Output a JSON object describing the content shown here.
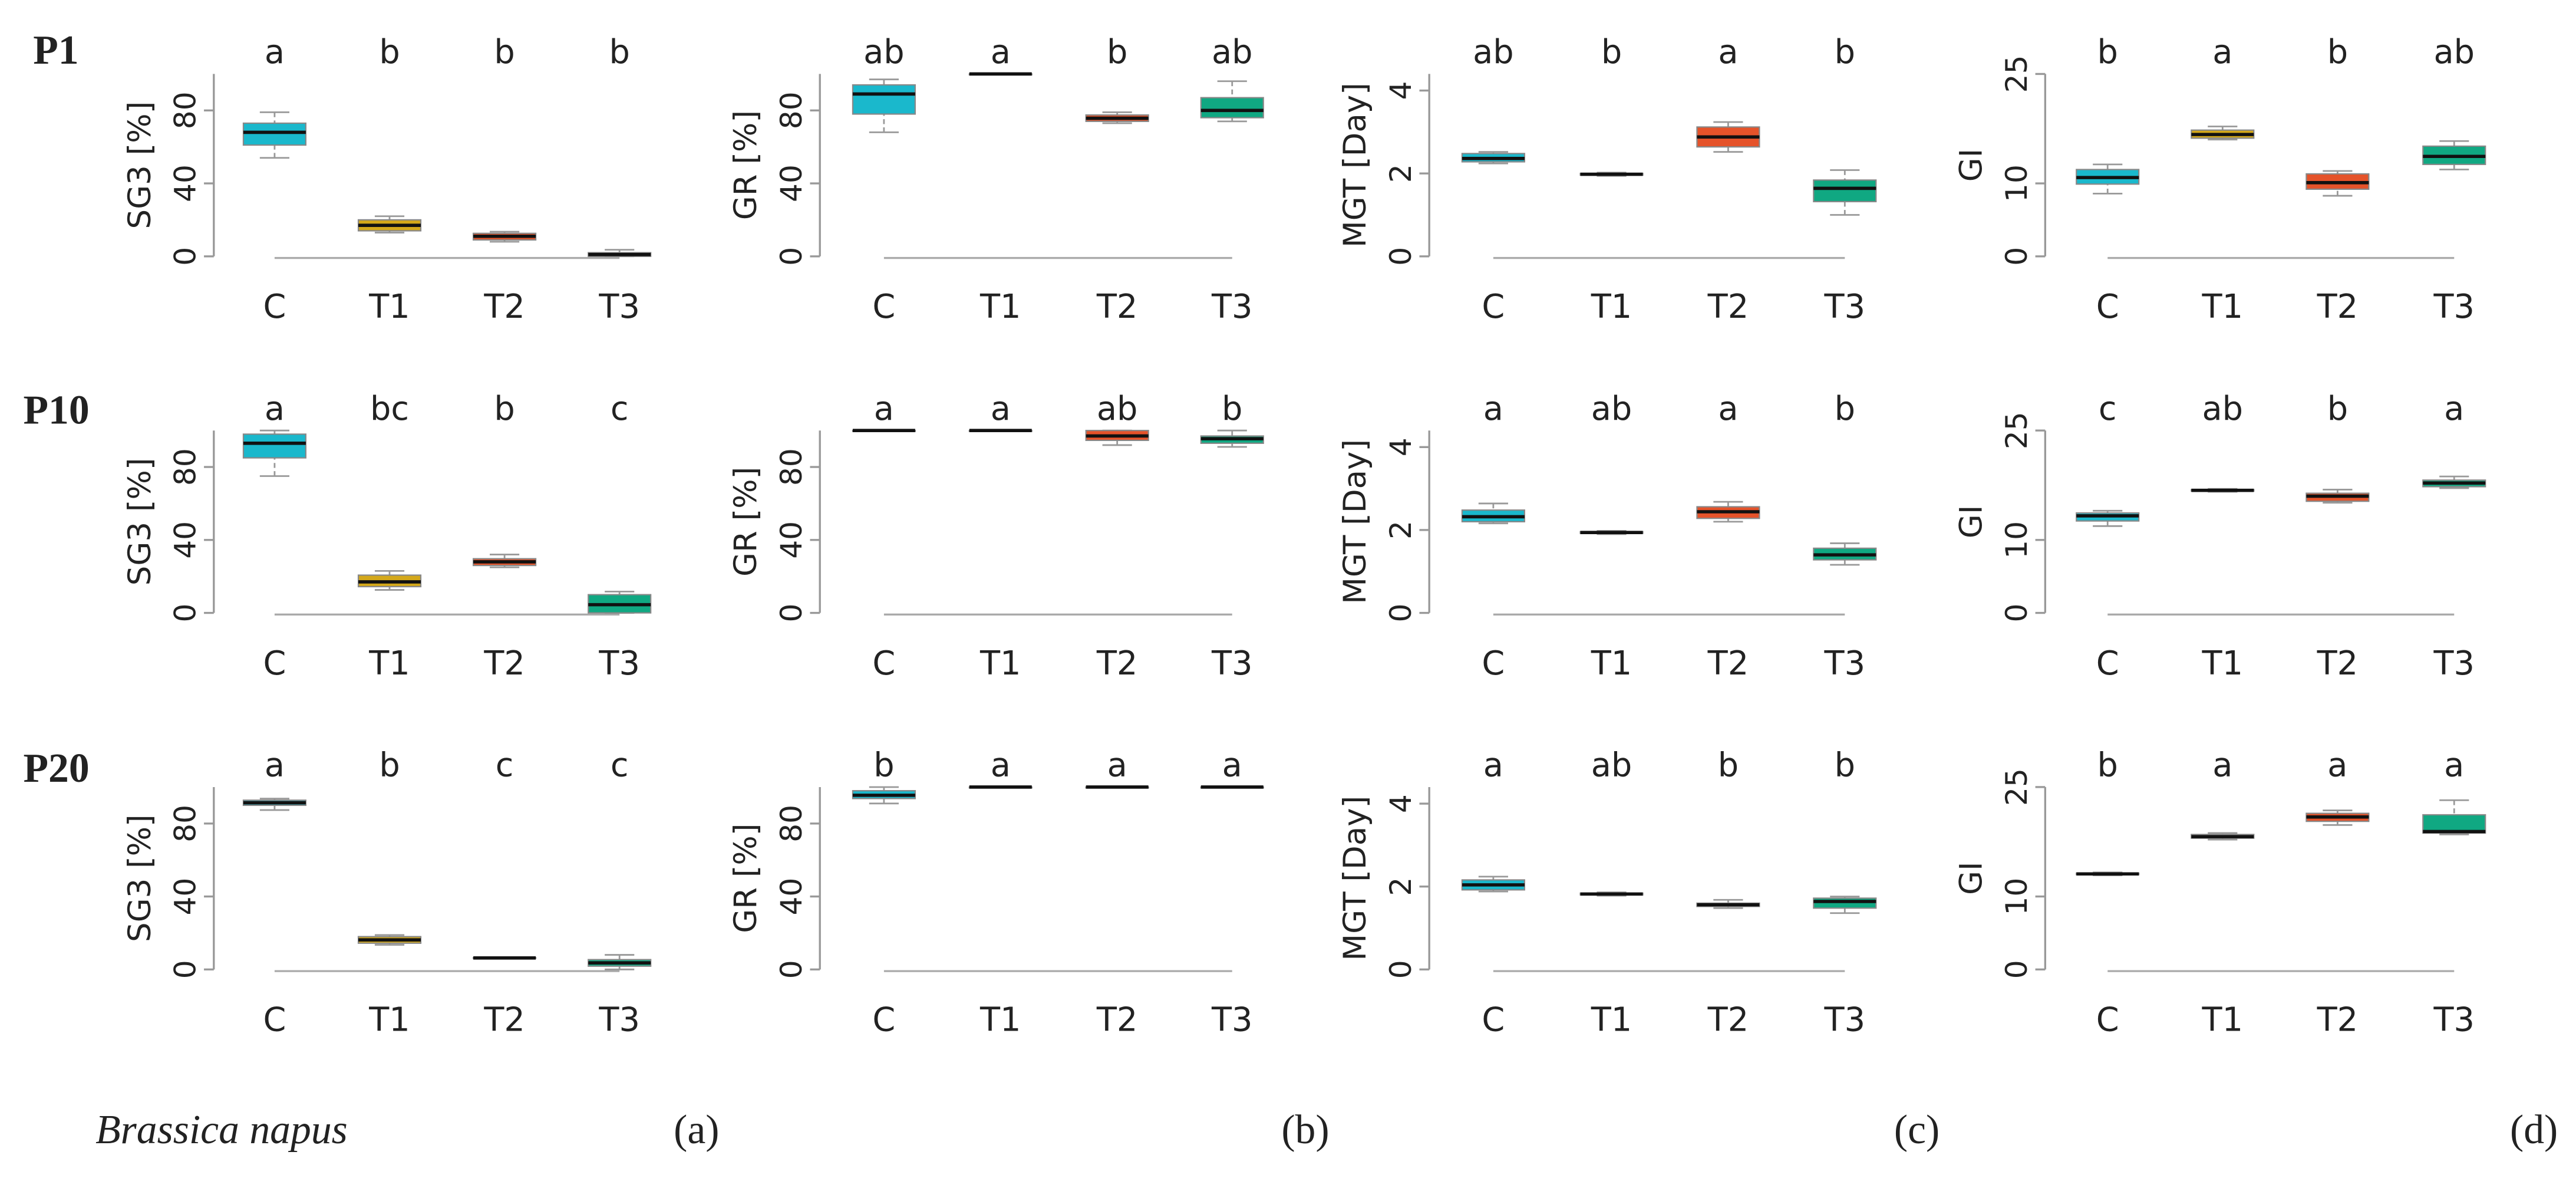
{
  "row_labels": [
    "P1",
    "P10",
    "P20"
  ],
  "species": "Brassica napus",
  "panel_labels": [
    "(a)",
    "(b)",
    "(c)",
    "(d)"
  ],
  "chart_data": [
    {
      "type": "box",
      "ylabel": "SG3 [%]",
      "categories": [
        "C",
        "T1",
        "T2",
        "T3"
      ],
      "colors": [
        "#1ab8cc",
        "#d4a81a",
        "#e5532a",
        "#10a882"
      ],
      "letters": [
        "a",
        "b",
        "b",
        "b"
      ],
      "ylim": [
        0,
        100
      ],
      "yticks": [
        0,
        40,
        80
      ],
      "boxes": [
        {
          "low": 54,
          "q1": 61,
          "median": 68,
          "q3": 73,
          "high": 79
        },
        {
          "low": 13,
          "q1": 14,
          "median": 17,
          "q3": 20,
          "high": 22
        },
        {
          "low": 8,
          "q1": 9,
          "median": 11,
          "q3": 12.6,
          "high": 13.5
        },
        {
          "low": 0,
          "q1": 0,
          "median": 1,
          "q3": 2,
          "high": 3.6
        }
      ]
    },
    {
      "type": "box",
      "ylabel": "GR [%]",
      "categories": [
        "C",
        "T1",
        "T2",
        "T3"
      ],
      "colors": [
        "#1ab8cc",
        "#d4a81a",
        "#e5532a",
        "#10a882"
      ],
      "letters": [
        "ab",
        "a",
        "b",
        "ab"
      ],
      "ylim": [
        0,
        100
      ],
      "yticks": [
        0,
        40,
        80
      ],
      "boxes": [
        {
          "low": 68,
          "q1": 78,
          "median": 89,
          "q3": 94,
          "high": 97
        },
        {
          "low": 100,
          "q1": 100,
          "median": 100,
          "q3": 100,
          "high": 100
        },
        {
          "low": 73,
          "q1": 74,
          "median": 75.7,
          "q3": 77.5,
          "high": 79
        },
        {
          "low": 74,
          "q1": 76,
          "median": 80,
          "q3": 87,
          "high": 96
        }
      ]
    },
    {
      "type": "box",
      "ylabel": "MGT [Day]",
      "categories": [
        "C",
        "T1",
        "T2",
        "T3"
      ],
      "colors": [
        "#1ab8cc",
        "#d4a81a",
        "#e5532a",
        "#10a882"
      ],
      "letters": [
        "ab",
        "b",
        "a",
        "b"
      ],
      "ylim": [
        0,
        4.4
      ],
      "yticks": [
        0,
        2,
        4
      ],
      "boxes": [
        {
          "low": 2.24,
          "q1": 2.28,
          "median": 2.36,
          "q3": 2.48,
          "high": 2.52
        },
        {
          "low": 1.94,
          "q1": 1.96,
          "median": 1.98,
          "q3": 2.0,
          "high": 2.02
        },
        {
          "low": 2.52,
          "q1": 2.64,
          "median": 2.88,
          "q3": 3.12,
          "high": 3.24
        },
        {
          "low": 1.0,
          "q1": 1.32,
          "median": 1.64,
          "q3": 1.84,
          "high": 2.08
        }
      ]
    },
    {
      "type": "box",
      "ylabel": "GI",
      "categories": [
        "C",
        "T1",
        "T2",
        "T3"
      ],
      "colors": [
        "#1ab8cc",
        "#d4a81a",
        "#e5532a",
        "#10a882"
      ],
      "letters": [
        "b",
        "a",
        "b",
        "ab"
      ],
      "ylim": [
        0,
        25
      ],
      "yticks": [
        0,
        10,
        25
      ],
      "boxes": [
        {
          "low": 8.6,
          "q1": 9.9,
          "median": 10.8,
          "q3": 11.9,
          "high": 12.6
        },
        {
          "low": 16,
          "q1": 16.2,
          "median": 16.7,
          "q3": 17.3,
          "high": 17.8
        },
        {
          "low": 8.3,
          "q1": 9.2,
          "median": 10.1,
          "q3": 11.3,
          "high": 11.7
        },
        {
          "low": 11.9,
          "q1": 12.6,
          "median": 13.7,
          "q3": 15.1,
          "high": 15.8
        }
      ]
    },
    {
      "type": "box",
      "ylabel": "SG3 [%]",
      "categories": [
        "C",
        "T1",
        "T2",
        "T3"
      ],
      "colors": [
        "#1ab8cc",
        "#d4a81a",
        "#e5532a",
        "#10a882"
      ],
      "letters": [
        "a",
        "bc",
        "b",
        "c"
      ],
      "ylim": [
        0,
        100
      ],
      "yticks": [
        0,
        40,
        80
      ],
      "boxes": [
        {
          "low": 75,
          "q1": 85,
          "median": 93,
          "q3": 98,
          "high": 100
        },
        {
          "low": 12.6,
          "q1": 14.4,
          "median": 17,
          "q3": 20.7,
          "high": 23
        },
        {
          "low": 25,
          "q1": 26,
          "median": 28,
          "q3": 29.7,
          "high": 32
        },
        {
          "low": 0,
          "q1": 0,
          "median": 4.5,
          "q3": 10,
          "high": 11.7
        }
      ]
    },
    {
      "type": "box",
      "ylabel": "GR [%]",
      "categories": [
        "C",
        "T1",
        "T2",
        "T3"
      ],
      "colors": [
        "#1ab8cc",
        "#d4a81a",
        "#e5532a",
        "#10a882"
      ],
      "letters": [
        "a",
        "a",
        "ab",
        "b"
      ],
      "ylim": [
        0,
        100
      ],
      "yticks": [
        0,
        40,
        80
      ],
      "boxes": [
        {
          "low": 100,
          "q1": 100,
          "median": 100,
          "q3": 100,
          "high": 100
        },
        {
          "low": 100,
          "q1": 100,
          "median": 100,
          "q3": 100,
          "high": 100
        },
        {
          "low": 92,
          "q1": 94.6,
          "median": 97,
          "q3": 100,
          "high": 100
        },
        {
          "low": 91,
          "q1": 93,
          "median": 95.5,
          "q3": 97,
          "high": 100
        }
      ]
    },
    {
      "type": "box",
      "ylabel": "MGT [Day]",
      "categories": [
        "C",
        "T1",
        "T2",
        "T3"
      ],
      "colors": [
        "#1ab8cc",
        "#d4a81a",
        "#e5532a",
        "#10a882"
      ],
      "letters": [
        "a",
        "ab",
        "a",
        "b"
      ],
      "ylim": [
        0,
        4.4
      ],
      "yticks": [
        0,
        2,
        4
      ],
      "boxes": [
        {
          "low": 2.16,
          "q1": 2.2,
          "median": 2.32,
          "q3": 2.48,
          "high": 2.64
        },
        {
          "low": 1.9,
          "q1": 1.92,
          "median": 1.94,
          "q3": 1.96,
          "high": 1.98
        },
        {
          "low": 2.2,
          "q1": 2.28,
          "median": 2.44,
          "q3": 2.56,
          "high": 2.68
        },
        {
          "low": 1.16,
          "q1": 1.28,
          "median": 1.4,
          "q3": 1.56,
          "high": 1.68
        }
      ]
    },
    {
      "type": "box",
      "ylabel": "GI",
      "categories": [
        "C",
        "T1",
        "T2",
        "T3"
      ],
      "colors": [
        "#1ab8cc",
        "#d4a81a",
        "#e5532a",
        "#10a882"
      ],
      "letters": [
        "c",
        "ab",
        "b",
        "a"
      ],
      "ylim": [
        0,
        25
      ],
      "yticks": [
        0,
        10,
        25
      ],
      "boxes": [
        {
          "low": 11.9,
          "q1": 12.6,
          "median": 13.3,
          "q3": 13.7,
          "high": 14
        },
        {
          "low": 16.6,
          "q1": 16.7,
          "median": 16.8,
          "q3": 16.9,
          "high": 17
        },
        {
          "low": 15.1,
          "q1": 15.3,
          "median": 16,
          "q3": 16.4,
          "high": 16.9
        },
        {
          "low": 17.1,
          "q1": 17.3,
          "median": 17.8,
          "q3": 18.2,
          "high": 18.7
        }
      ]
    },
    {
      "type": "box",
      "ylabel": "SG3 [%]",
      "categories": [
        "C",
        "T1",
        "T2",
        "T3"
      ],
      "colors": [
        "#1ab8cc",
        "#d4a81a",
        "#e5532a",
        "#10a882"
      ],
      "letters": [
        "a",
        "b",
        "c",
        "c"
      ],
      "ylim": [
        0,
        100
      ],
      "yticks": [
        0,
        40,
        80
      ],
      "boxes": [
        {
          "low": 87.4,
          "q1": 90,
          "median": 91.4,
          "q3": 92.8,
          "high": 93.7
        },
        {
          "low": 13.5,
          "q1": 14.4,
          "median": 16.2,
          "q3": 18,
          "high": 18.9
        },
        {
          "low": 6,
          "q1": 6.2,
          "median": 6.3,
          "q3": 6.5,
          "high": 6.7
        },
        {
          "low": 0,
          "q1": 1.8,
          "median": 3.6,
          "q3": 5.4,
          "high": 8
        }
      ]
    },
    {
      "type": "box",
      "ylabel": "GR [%]",
      "categories": [
        "C",
        "T1",
        "T2",
        "T3"
      ],
      "colors": [
        "#1ab8cc",
        "#d4a81a",
        "#e5532a",
        "#10a882"
      ],
      "letters": [
        "b",
        "a",
        "a",
        "a"
      ],
      "ylim": [
        0,
        100
      ],
      "yticks": [
        0,
        40,
        80
      ],
      "boxes": [
        {
          "low": 91,
          "q1": 93.7,
          "median": 95.5,
          "q3": 98,
          "high": 100
        },
        {
          "low": 100,
          "q1": 100,
          "median": 100,
          "q3": 100,
          "high": 100
        },
        {
          "low": 100,
          "q1": 100,
          "median": 100,
          "q3": 100,
          "high": 100
        },
        {
          "low": 100,
          "q1": 100,
          "median": 100,
          "q3": 100,
          "high": 100
        }
      ]
    },
    {
      "type": "box",
      "ylabel": "MGT [Day]",
      "categories": [
        "C",
        "T1",
        "T2",
        "T3"
      ],
      "colors": [
        "#1ab8cc",
        "#d4a81a",
        "#e5532a",
        "#10a882"
      ],
      "letters": [
        "a",
        "ab",
        "b",
        "b"
      ],
      "ylim": [
        0,
        4.4
      ],
      "yticks": [
        0,
        2,
        4
      ],
      "boxes": [
        {
          "low": 1.88,
          "q1": 1.92,
          "median": 2.04,
          "q3": 2.16,
          "high": 2.24
        },
        {
          "low": 1.78,
          "q1": 1.8,
          "median": 1.82,
          "q3": 1.84,
          "high": 1.86
        },
        {
          "low": 1.48,
          "q1": 1.52,
          "median": 1.56,
          "q3": 1.6,
          "high": 1.68
        },
        {
          "low": 1.36,
          "q1": 1.48,
          "median": 1.64,
          "q3": 1.72,
          "high": 1.76
        }
      ]
    },
    {
      "type": "box",
      "ylabel": "GI",
      "categories": [
        "C",
        "T1",
        "T2",
        "T3"
      ],
      "colors": [
        "#1ab8cc",
        "#d4a81a",
        "#e5532a",
        "#10a882"
      ],
      "letters": [
        "b",
        "a",
        "a",
        "a"
      ],
      "ylim": [
        0,
        25
      ],
      "yticks": [
        0,
        10,
        25
      ],
      "boxes": [
        {
          "low": 12.9,
          "q1": 13,
          "median": 13.1,
          "q3": 13.2,
          "high": 13.3
        },
        {
          "low": 17.8,
          "q1": 18,
          "median": 18.2,
          "q3": 18.5,
          "high": 18.7
        },
        {
          "low": 19.8,
          "q1": 20.3,
          "median": 20.9,
          "q3": 21.4,
          "high": 21.8
        },
        {
          "low": 18.5,
          "q1": 18.7,
          "median": 18.9,
          "q3": 21.2,
          "high": 23.2
        }
      ]
    }
  ]
}
